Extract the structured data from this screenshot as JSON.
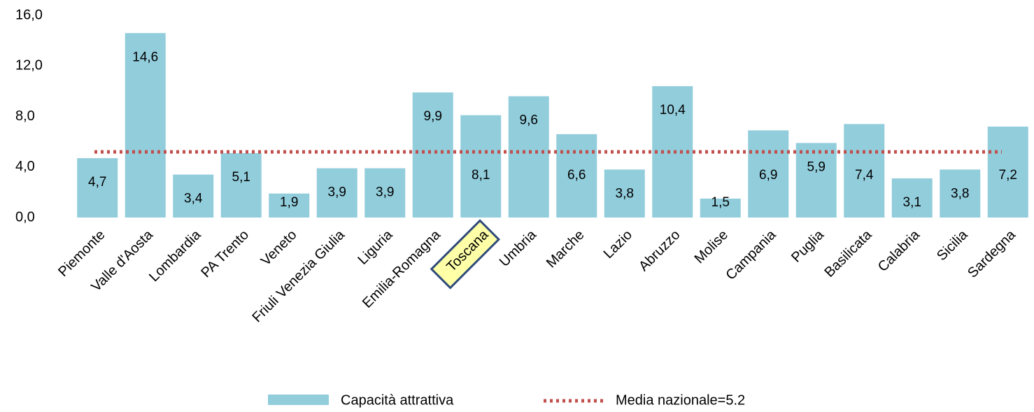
{
  "chart_data": {
    "type": "bar",
    "categories": [
      "Piemonte",
      "Valle d'Aosta",
      "Lombardia",
      "PA Trento",
      "Veneto",
      "Friuli Venezia Giulia",
      "Liguria",
      "Emilia-Romagna",
      "Toscana",
      "Umbria",
      "Marche",
      "Lazio",
      "Abruzzo",
      "Molise",
      "Campania",
      "Puglia",
      "Basilicata",
      "Calabria",
      "Sicilia",
      "Sardegna"
    ],
    "series": [
      {
        "name": "Capacità attrattiva",
        "color": "#92cddc",
        "values": [
          4.7,
          14.6,
          3.4,
          5.1,
          1.9,
          3.9,
          3.9,
          9.9,
          8.1,
          9.6,
          6.6,
          3.8,
          10.4,
          1.5,
          6.9,
          5.9,
          7.4,
          3.1,
          3.8,
          7.2
        ],
        "value_labels": [
          "4,7",
          "14,6",
          "3,4",
          "5,1",
          "1,9",
          "3,9",
          "3,9",
          "9,9",
          "8,1",
          "9,6",
          "6,6",
          "3,8",
          "10,4",
          "1,5",
          "6,9",
          "5,9",
          "7,4",
          "3,1",
          "3,8",
          "7,2"
        ]
      }
    ],
    "reference_line": {
      "name": "Media nazionale=5.2",
      "value": 5.2,
      "color": "#c0504d"
    },
    "highlighted_category": 8,
    "ylim": [
      0,
      16
    ],
    "yticks": [
      {
        "value": 0,
        "label": "0,0"
      },
      {
        "value": 4,
        "label": "4,0"
      },
      {
        "value": 8,
        "label": "8,0"
      },
      {
        "value": 12,
        "label": "12,0"
      },
      {
        "value": 16,
        "label": "16,0"
      }
    ],
    "grid": false
  }
}
